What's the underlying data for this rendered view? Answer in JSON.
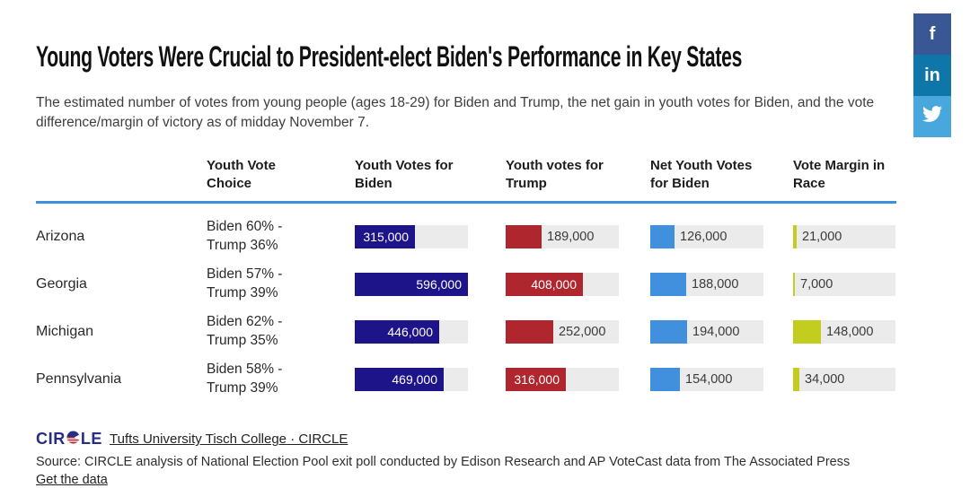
{
  "header": {
    "title": "Young Voters Were Crucial to President-elect Biden's Performance in Key States",
    "subtitle": "The estimated number of votes from young people (ages 18-29) for Biden and Trump, the net gain in youth votes for Biden, and the vote difference/margin of victory as of midday November 7."
  },
  "social": {
    "facebook_label": "f",
    "linkedin_label": "in",
    "twitter_icon": "twitter-bird",
    "facebook_color": "#3a5795",
    "linkedin_color": "#0e76a8",
    "twitter_color": "#48a8de"
  },
  "chart_data": {
    "type": "bar",
    "orientation": "horizontal",
    "title": "Young Voters Were Crucial to President-elect Biden's Performance in Key States",
    "columns": [
      "Youth Vote Choice",
      "Youth Votes for Biden",
      "Youth votes for Trump",
      "Net Youth Votes for Biden",
      "Vote Margin in Race"
    ],
    "scale_max": 596000,
    "series_colors": {
      "biden": "#1d1489",
      "trump": "#b0262f",
      "net": "#4090de",
      "margin": "#c3cd1f"
    },
    "track_color": "#ebebeb",
    "header_rule_color": "#3d8fe0",
    "rows": [
      {
        "state": "Arizona",
        "choice": "Biden 60% - Trump 36%",
        "biden": 315000,
        "trump": 189000,
        "net": 126000,
        "margin": 21000
      },
      {
        "state": "Georgia",
        "choice": "Biden 57% - Trump 39%",
        "biden": 596000,
        "trump": 408000,
        "net": 188000,
        "margin": 7000
      },
      {
        "state": "Michigan",
        "choice": "Biden 62% - Trump 35%",
        "biden": 446000,
        "trump": 252000,
        "net": 194000,
        "margin": 148000
      },
      {
        "state": "Pennsylvania",
        "choice": "Biden 58% - Trump 39%",
        "biden": 469000,
        "trump": 316000,
        "net": 154000,
        "margin": 34000
      }
    ]
  },
  "footer": {
    "logo_left": "CIR",
    "logo_right": "LE",
    "attribution": "Tufts University Tisch College · CIRCLE",
    "source": "Source: CIRCLE analysis of National Election Pool exit poll conducted by Edison Research and AP VoteCast data from The Associated Press",
    "get_data": "Get the data"
  }
}
